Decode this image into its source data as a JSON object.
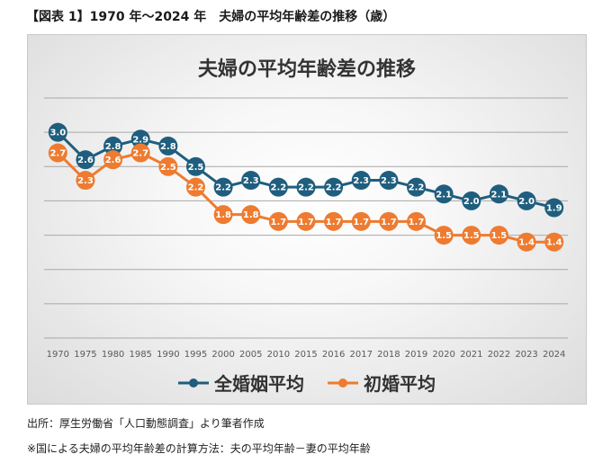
{
  "figure_title": "【図表 1】1970 年～2024 年　夫婦の平均年齢差の推移（歳）",
  "source_note": "出所：厚生労働省「人口動態調査」より筆者作成",
  "method_note": "※国による夫婦の平均年齢差の計算方法：夫の平均年齢－妻の平均年齢",
  "colors": {
    "series_1": "#1f5e7e",
    "series_2": "#ee7b30",
    "gridline": "#a8a8a8"
  },
  "chart_data": {
    "type": "line",
    "title": "夫婦の平均年齢差の推移",
    "xlabel": "",
    "ylabel": "",
    "x": [
      "1970",
      "1975",
      "1980",
      "1985",
      "1990",
      "1995",
      "2000",
      "2005",
      "2010",
      "2015",
      "2016",
      "2017",
      "2018",
      "2019",
      "2020",
      "2021",
      "2022",
      "2023",
      "2024"
    ],
    "ylim": [
      0,
      3.5
    ],
    "grid": true,
    "legend_position": "bottom",
    "series": [
      {
        "name": "全婚姻平均",
        "values": [
          3.0,
          2.6,
          2.8,
          2.9,
          2.8,
          2.5,
          2.2,
          2.3,
          2.2,
          2.2,
          2.2,
          2.3,
          2.3,
          2.2,
          2.1,
          2.0,
          2.1,
          2.0,
          1.9
        ]
      },
      {
        "name": "初婚平均",
        "values": [
          2.7,
          2.3,
          2.6,
          2.7,
          2.5,
          2.2,
          1.8,
          1.8,
          1.7,
          1.7,
          1.7,
          1.7,
          1.7,
          1.7,
          1.5,
          1.5,
          1.5,
          1.4,
          1.4
        ]
      }
    ]
  }
}
